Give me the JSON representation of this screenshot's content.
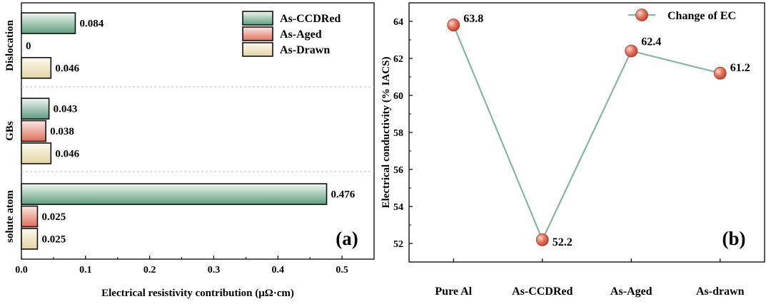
{
  "chart_data": [
    {
      "type": "bar",
      "orientation": "horizontal",
      "panel_label": "(a)",
      "xlabel": "Electrical resistivity contribution (μΩ·cm)",
      "ylabel": "",
      "xlim": [
        0,
        0.55
      ],
      "xticks": [
        "0.0",
        "0.1",
        "0.2",
        "0.3",
        "0.4",
        "0.5"
      ],
      "categories": [
        "Dislocation",
        "GBs",
        "solute atom"
      ],
      "legend_position": "top-right",
      "series": [
        {
          "name": "As-CCDRed",
          "values": [
            0.084,
            0.043,
            0.476
          ],
          "labels": [
            "0.084",
            "0.043",
            "0.476"
          ],
          "color_light": "#eef6f1",
          "color_dark": "#5f9e7f"
        },
        {
          "name": "As-Aged",
          "values": [
            0,
            0.038,
            0.025
          ],
          "labels": [
            "0",
            "0.038",
            "0.025"
          ],
          "color_light": "#fde8e3",
          "color_dark": "#df6f5a"
        },
        {
          "name": "As-Drawn",
          "values": [
            0.046,
            0.046,
            0.025
          ],
          "labels": [
            "0.046",
            "0.046",
            "0.025"
          ],
          "color_light": "#fdfaee",
          "color_dark": "#e2d4a6"
        }
      ]
    },
    {
      "type": "line",
      "panel_label": "(b)",
      "ylabel": "Electrical conductivity (% IACS)",
      "xlabel": "",
      "categories": [
        "Pure Al",
        "As-CCDRed",
        "As-Aged",
        "As-drawn"
      ],
      "ylim": [
        51,
        65
      ],
      "yticks": [
        52,
        54,
        56,
        58,
        60,
        62,
        64
      ],
      "legend_position": "top-right",
      "series": [
        {
          "name": "Change of EC",
          "values": [
            63.8,
            52.2,
            62.4,
            61.2
          ],
          "labels": [
            "63.8",
            "52.2",
            "62.4",
            "61.2"
          ],
          "line_color": "#86b6a1",
          "marker_color": "#e8705e"
        }
      ]
    }
  ]
}
